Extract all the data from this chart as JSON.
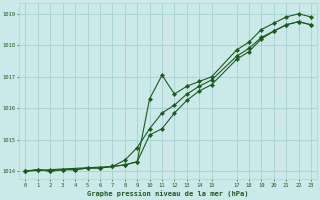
{
  "background_color": "#cce9e9",
  "grid_color": "#aad4d4",
  "line_color": "#1a5c1a",
  "marker_color": "#1a5c1a",
  "xlabel": "Graphe pression niveau de la mer (hPa)",
  "xlabel_color": "#1a5c1a",
  "tick_color": "#1a5c1a",
  "xlim": [
    -0.5,
    23.5
  ],
  "ylim": [
    1013.75,
    1019.35
  ],
  "yticks": [
    1014,
    1015,
    1016,
    1017,
    1018,
    1019
  ],
  "xticks": [
    0,
    1,
    2,
    3,
    4,
    5,
    6,
    7,
    8,
    9,
    10,
    11,
    12,
    13,
    14,
    15,
    17,
    18,
    19,
    20,
    21,
    22,
    23
  ],
  "series": [
    {
      "x": [
        0,
        1,
        2,
        3,
        4,
        5,
        6,
        7,
        8,
        9,
        10,
        11,
        12,
        13,
        14,
        15,
        17,
        18,
        19,
        20,
        21,
        22,
        23
      ],
      "y": [
        1014.0,
        1014.05,
        1014.0,
        1014.05,
        1014.05,
        1014.1,
        1014.1,
        1014.15,
        1014.2,
        1014.3,
        1016.3,
        1017.05,
        1016.45,
        1016.7,
        1016.85,
        1017.0,
        1017.85,
        1018.1,
        1018.5,
        1018.7,
        1018.9,
        1019.0,
        1018.9
      ]
    },
    {
      "x": [
        0,
        1,
        2,
        3,
        4,
        5,
        6,
        7,
        8,
        9,
        10,
        11,
        12,
        13,
        14,
        15,
        17,
        18,
        19,
        20,
        21,
        22,
        23
      ],
      "y": [
        1014.0,
        1014.05,
        1014.0,
        1014.05,
        1014.05,
        1014.1,
        1014.1,
        1014.15,
        1014.2,
        1014.3,
        1015.15,
        1015.35,
        1015.85,
        1016.25,
        1016.55,
        1016.75,
        1017.55,
        1017.8,
        1018.2,
        1018.45,
        1018.65,
        1018.75,
        1018.65
      ]
    },
    {
      "x": [
        0,
        2,
        7,
        8,
        9,
        10,
        11,
        12,
        13,
        14,
        15,
        17,
        18,
        19,
        20,
        21,
        22,
        23
      ],
      "y": [
        1014.0,
        1014.05,
        1014.15,
        1014.35,
        1014.75,
        1015.35,
        1015.85,
        1016.1,
        1016.45,
        1016.7,
        1016.9,
        1017.65,
        1017.9,
        1018.25,
        1018.45,
        1018.65,
        1018.75,
        1018.65
      ]
    }
  ]
}
